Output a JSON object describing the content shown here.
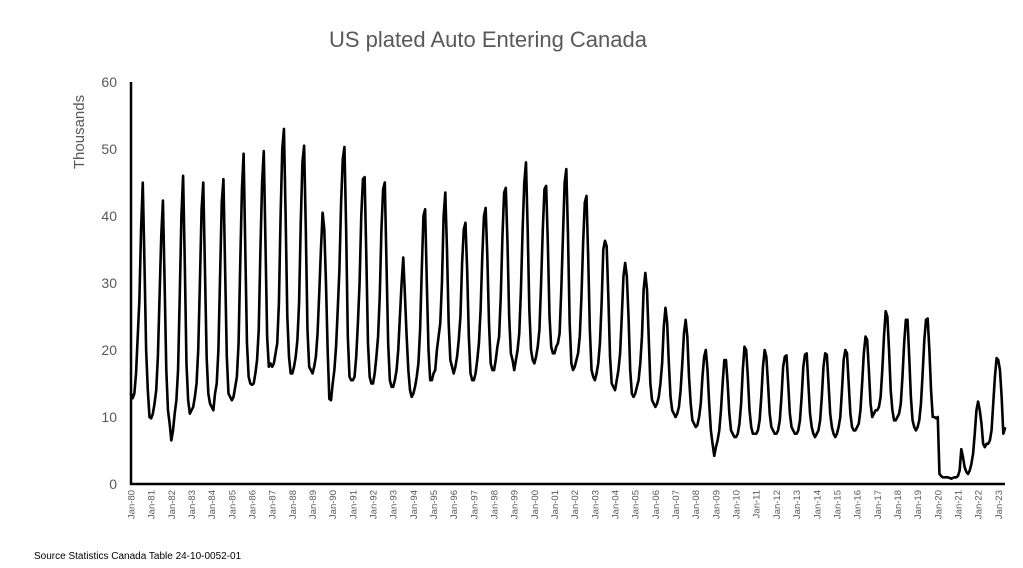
{
  "source_note": "Source Statistics Canada Table 24-10-0052-01",
  "chart_data": {
    "type": "line",
    "title": "US plated Auto Entering Canada",
    "ylabel": "Thousands",
    "xlabel": "",
    "ylim": [
      0,
      60
    ],
    "y_ticks": [
      "0",
      "10",
      "20",
      "30",
      "40",
      "50",
      "60"
    ],
    "grid": false,
    "legend": "none",
    "line_color": "#000000",
    "x_start": "Jan-80",
    "x_tick_labels": [
      "Jan-80",
      "Jan-81",
      "Jan-82",
      "Jan-83",
      "Jan-84",
      "Jan-85",
      "Jan-86",
      "Jan-87",
      "Jan-88",
      "Jan-89",
      "Jan-90",
      "Jan-91",
      "Jan-92",
      "Jan-93",
      "Jan-94",
      "Jan-95",
      "Jan-96",
      "Jan-97",
      "Jan-98",
      "Jan-99",
      "Jan-00",
      "Jan-01",
      "Jan-02",
      "Jan-03",
      "Jan-04",
      "Jan-05",
      "Jan-06",
      "Jan-07",
      "Jan-08",
      "Jan-09",
      "Jan-10",
      "Jan-11",
      "Jan-12",
      "Jan-13",
      "Jan-14",
      "Jan-15",
      "Jan-16",
      "Jan-17",
      "Jan-18",
      "Jan-19",
      "Jan-20",
      "Jan-21",
      "Jan-22",
      "Jan-23"
    ],
    "series": [
      {
        "frequency": "monthly",
        "values": [
          13.5,
          12.8,
          13.5,
          16.5,
          22.0,
          27.5,
          38.0,
          45.0,
          33.0,
          20.0,
          14.0,
          10.0,
          9.8,
          10.5,
          12.0,
          14.0,
          19.0,
          28.0,
          37.0,
          42.3,
          30.0,
          17.0,
          11.0,
          9.0,
          6.5,
          8.0,
          10.5,
          12.5,
          17.0,
          28.0,
          40.0,
          46.0,
          33.0,
          18.0,
          12.5,
          10.5,
          11.0,
          11.5,
          13.0,
          15.0,
          20.0,
          30.0,
          41.0,
          45.0,
          32.0,
          19.0,
          13.5,
          12.0,
          11.5,
          11.0,
          13.5,
          15.0,
          20.0,
          31.0,
          42.0,
          45.5,
          32.0,
          19.0,
          13.5,
          13.0,
          12.5,
          13.0,
          14.5,
          16.0,
          21.0,
          33.0,
          44.0,
          49.3,
          35.0,
          21.0,
          16.0,
          15.0,
          14.8,
          15.0,
          16.5,
          18.5,
          23.0,
          35.0,
          45.0,
          49.7,
          36.0,
          22.0,
          17.5,
          18.0,
          17.5,
          18.0,
          19.5,
          21.0,
          27.0,
          40.0,
          50.0,
          53.0,
          40.0,
          25.0,
          19.0,
          16.5,
          16.5,
          17.5,
          19.0,
          21.5,
          27.0,
          39.0,
          48.0,
          50.5,
          38.0,
          23.0,
          17.5,
          17.0,
          16.5,
          17.5,
          19.0,
          22.5,
          28.5,
          35.0,
          40.5,
          38.0,
          30.0,
          20.0,
          12.7,
          12.5,
          15.0,
          17.0,
          20.5,
          26.0,
          32.0,
          42.0,
          48.5,
          50.3,
          38.0,
          22.0,
          16.0,
          15.5,
          15.5,
          16.0,
          19.0,
          24.0,
          30.0,
          40.0,
          45.5,
          45.8,
          34.0,
          21.0,
          16.0,
          15.0,
          15.0,
          16.5,
          19.0,
          22.0,
          28.0,
          38.0,
          44.0,
          45.0,
          33.0,
          21.0,
          15.5,
          14.5,
          14.5,
          15.5,
          17.0,
          20.0,
          25.0,
          30.0,
          33.8,
          28.0,
          22.0,
          17.0,
          14.0,
          13.0,
          13.5,
          14.5,
          16.0,
          18.0,
          23.0,
          32.0,
          40.0,
          41.0,
          30.0,
          20.0,
          15.5,
          15.5,
          16.5,
          17.0,
          20.0,
          22.0,
          24.0,
          30.0,
          40.0,
          43.5,
          35.0,
          24.0,
          18.5,
          17.5,
          16.5,
          17.5,
          19.0,
          21.5,
          25.0,
          33.0,
          38.0,
          39.0,
          32.0,
          22.0,
          16.5,
          15.5,
          15.5,
          16.5,
          18.5,
          21.0,
          26.0,
          34.0,
          40.0,
          41.2,
          34.0,
          24.0,
          18.0,
          17.0,
          17.0,
          18.5,
          20.5,
          22.0,
          28.0,
          37.0,
          43.5,
          44.2,
          36.0,
          25.0,
          19.5,
          18.5,
          17.0,
          18.5,
          20.0,
          22.5,
          29.0,
          38.0,
          45.0,
          48.0,
          38.0,
          26.0,
          20.0,
          18.5,
          18.0,
          19.0,
          20.5,
          23.0,
          30.0,
          38.0,
          44.0,
          44.5,
          36.0,
          25.0,
          20.5,
          19.5,
          19.5,
          20.5,
          21.0,
          22.5,
          29.0,
          37.0,
          45.0,
          47.0,
          37.0,
          24.0,
          18.0,
          17.0,
          17.5,
          18.5,
          19.5,
          22.0,
          28.0,
          36.0,
          42.0,
          43.0,
          34.0,
          23.0,
          17.0,
          16.0,
          15.5,
          16.5,
          18.0,
          21.0,
          27.0,
          35.0,
          36.3,
          35.5,
          28.0,
          19.0,
          15.0,
          14.5,
          14.0,
          15.5,
          17.0,
          19.5,
          25.0,
          31.0,
          33.0,
          31.0,
          25.0,
          17.0,
          13.5,
          13.0,
          13.5,
          14.5,
          15.5,
          18.0,
          22.0,
          29.0,
          31.5,
          29.0,
          22.0,
          15.0,
          12.5,
          12.0,
          11.5,
          12.0,
          13.0,
          15.0,
          18.0,
          23.5,
          26.3,
          24.0,
          18.0,
          13.0,
          11.0,
          10.5,
          10.0,
          10.5,
          11.5,
          14.0,
          18.0,
          22.5,
          24.5,
          22.0,
          16.0,
          12.0,
          9.5,
          9.0,
          8.5,
          8.8,
          10.0,
          12.0,
          16.0,
          19.0,
          20.0,
          17.0,
          12.0,
          8.0,
          6.0,
          4.2,
          5.5,
          6.5,
          8.0,
          11.0,
          15.0,
          18.5,
          18.5,
          15.0,
          10.5,
          8.0,
          7.5,
          7.0,
          7.0,
          7.5,
          9.0,
          12.0,
          17.0,
          20.5,
          20.0,
          16.0,
          11.0,
          8.5,
          7.5,
          7.5,
          7.5,
          8.0,
          9.5,
          13.0,
          17.5,
          20.0,
          19.0,
          15.0,
          10.5,
          8.5,
          8.0,
          7.5,
          7.5,
          8.0,
          9.5,
          13.0,
          17.5,
          19.0,
          19.2,
          15.0,
          10.5,
          8.5,
          8.0,
          7.5,
          7.5,
          8.0,
          9.5,
          13.0,
          17.5,
          19.3,
          19.5,
          15.0,
          10.5,
          8.5,
          7.5,
          7.0,
          7.5,
          8.0,
          9.5,
          13.0,
          17.5,
          19.5,
          19.3,
          15.0,
          10.5,
          8.5,
          7.5,
          7.0,
          7.5,
          8.5,
          10.0,
          14.0,
          18.5,
          20.0,
          19.5,
          15.0,
          10.5,
          8.5,
          8.0,
          8.0,
          8.5,
          9.0,
          11.0,
          15.0,
          19.5,
          22.0,
          21.5,
          17.0,
          12.0,
          10.0,
          10.5,
          11.0,
          11.0,
          11.5,
          13.0,
          17.0,
          22.0,
          25.8,
          25.0,
          20.0,
          14.0,
          11.0,
          9.5,
          9.5,
          10.0,
          10.5,
          12.0,
          16.0,
          21.0,
          24.5,
          24.5,
          19.0,
          13.0,
          9.5,
          8.5,
          8.0,
          8.5,
          9.5,
          12.0,
          16.5,
          21.5,
          24.5,
          24.7,
          20.0,
          14.0,
          10.0,
          10.0,
          9.8,
          10.0,
          1.5,
          1.2,
          1.0,
          1.0,
          1.0,
          1.0,
          0.9,
          0.8,
          0.9,
          1.0,
          1.0,
          1.2,
          2.0,
          5.2,
          4.0,
          2.5,
          1.8,
          1.5,
          2.0,
          3.0,
          4.5,
          7.5,
          11.0,
          12.3,
          11.0,
          9.0,
          6.0,
          5.5,
          6.0,
          6.0,
          6.5,
          8.0,
          12.0,
          16.0,
          18.8,
          18.5,
          17.0,
          13.0,
          7.5,
          8.3
        ]
      }
    ]
  }
}
